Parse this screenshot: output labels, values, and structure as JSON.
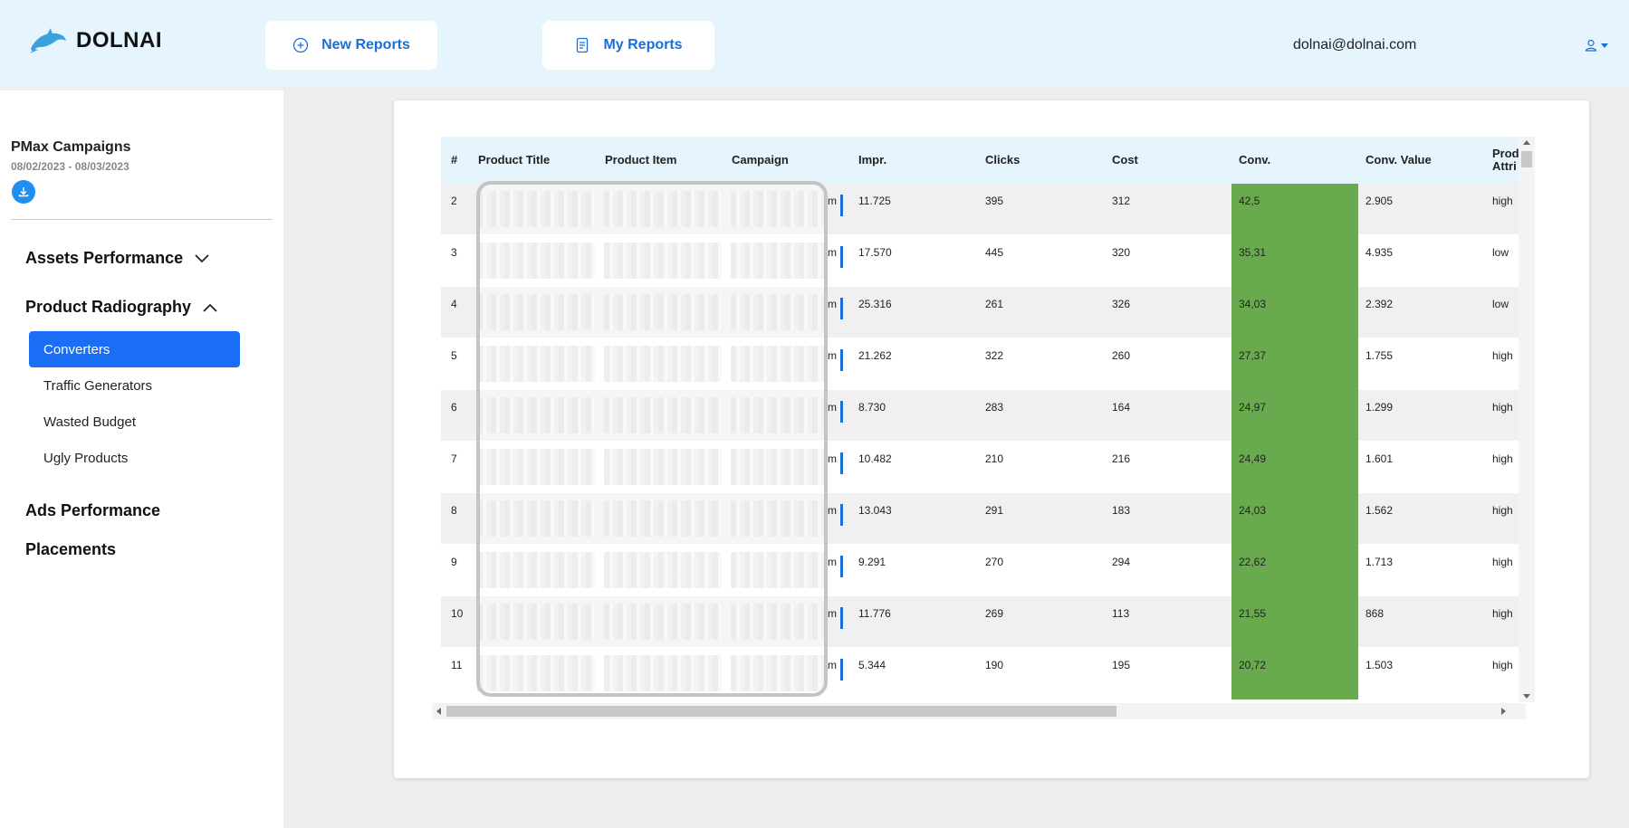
{
  "app": {
    "name": "DOLNAI"
  },
  "header": {
    "new_reports_label": "New Reports",
    "my_reports_label": "My Reports",
    "user_email": "dolnai@dolnai.com"
  },
  "sidebar": {
    "campaign_title": "PMax Campaigns",
    "campaign_dates": "08/02/2023 - 08/03/2023",
    "assets_performance": "Assets Performance",
    "product_radiography": "Product Radiography",
    "sub_items": [
      "Converters",
      "Traffic Generators",
      "Wasted Budget",
      "Ugly Products"
    ],
    "active_sub_item": "Converters",
    "ads_performance": "Ads Performance",
    "placements": "Placements"
  },
  "colors": {
    "accent": "#1a6ef5",
    "header_bg": "#e6f4fd",
    "conv_highlight": "#6aaa4e"
  },
  "table": {
    "headers": [
      "#",
      "Product Title",
      "Product Item",
      "Campaign",
      "Impr.",
      "Clicks",
      "Cost",
      "Conv.",
      "Conv. Value",
      "Prod Attri"
    ],
    "rows": [
      {
        "n": "2",
        "impr": "11.725",
        "clicks": "395",
        "cost": "312",
        "conv": "42,5",
        "conv_value": "2.905",
        "attr": "high"
      },
      {
        "n": "3",
        "impr": "17.570",
        "clicks": "445",
        "cost": "320",
        "conv": "35,31",
        "conv_value": "4.935",
        "attr": "low"
      },
      {
        "n": "4",
        "impr": "25.316",
        "clicks": "261",
        "cost": "326",
        "conv": "34,03",
        "conv_value": "2.392",
        "attr": "low"
      },
      {
        "n": "5",
        "impr": "21.262",
        "clicks": "322",
        "cost": "260",
        "conv": "27,37",
        "conv_value": "1.755",
        "attr": "high"
      },
      {
        "n": "6",
        "impr": "8.730",
        "clicks": "283",
        "cost": "164",
        "conv": "24,97",
        "conv_value": "1.299",
        "attr": "high"
      },
      {
        "n": "7",
        "impr": "10.482",
        "clicks": "210",
        "cost": "216",
        "conv": "24,49",
        "conv_value": "1.601",
        "attr": "high"
      },
      {
        "n": "8",
        "impr": "13.043",
        "clicks": "291",
        "cost": "183",
        "conv": "24,03",
        "conv_value": "1.562",
        "attr": "high"
      },
      {
        "n": "9",
        "impr": "9.291",
        "clicks": "270",
        "cost": "294",
        "conv": "22,62",
        "conv_value": "1.713",
        "attr": "high"
      },
      {
        "n": "10",
        "impr": "11.776",
        "clicks": "269",
        "cost": "113",
        "conv": "21,55",
        "conv_value": "868",
        "attr": "high"
      },
      {
        "n": "11",
        "impr": "5.344",
        "clicks": "190",
        "cost": "195",
        "conv": "20,72",
        "conv_value": "1.503",
        "attr": "high"
      }
    ],
    "campaign_suffix": "m"
  }
}
